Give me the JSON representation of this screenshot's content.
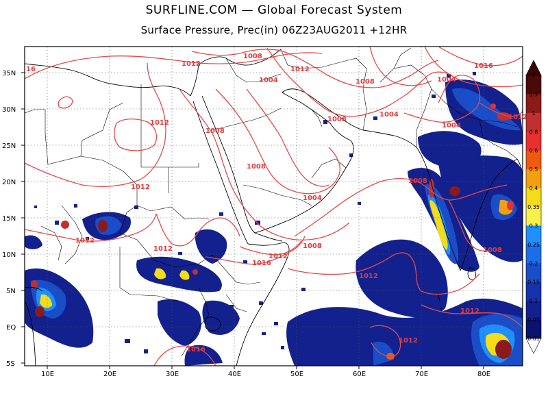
{
  "header": {
    "title": "SURFLINE.COM  —  Global Forecast System",
    "subtitle": "Surface Pressure,  Prec(in) 06Z23AUG2011 +12HR"
  },
  "axes": {
    "lat_labels": [
      "35N",
      "30N",
      "25N",
      "20N",
      "15N",
      "10N",
      "5N",
      "EQ",
      "5S"
    ],
    "lon_labels": [
      "10E",
      "20E",
      "30E",
      "40E",
      "50E",
      "60E",
      "70E",
      "80E"
    ]
  },
  "isobars": [
    {
      "text": "1012"
    },
    {
      "text": "1008"
    },
    {
      "text": "1012"
    },
    {
      "text": "1004"
    },
    {
      "text": "1008"
    },
    {
      "text": "1012"
    },
    {
      "text": "1008"
    },
    {
      "text": "1008"
    },
    {
      "text": "1004"
    },
    {
      "text": "1004"
    },
    {
      "text": "1004"
    },
    {
      "text": "1016"
    },
    {
      "text": "1012"
    },
    {
      "text": "1012"
    },
    {
      "text": "1008"
    },
    {
      "text": "1004"
    },
    {
      "text": "1008"
    },
    {
      "text": "1008"
    },
    {
      "text": "1012"
    },
    {
      "text": "1012"
    },
    {
      "text": "1012"
    },
    {
      "text": "1016"
    },
    {
      "text": "1008"
    },
    {
      "text": "1012"
    },
    {
      "text": "1012"
    },
    {
      "text": "1012"
    },
    {
      "text": "1016"
    },
    {
      "text": "16"
    }
  ],
  "colorbar": {
    "labels": [
      "2",
      "1.5",
      "1",
      "0.8",
      "0.6",
      "0.5",
      "0.4",
      "0.35",
      "0.3",
      "0.25",
      "0.2",
      "0.15",
      "0.1",
      "0.05",
      "0.01"
    ],
    "colors": [
      "#4a0a0a",
      "#8b1a1a",
      "#c03030",
      "#e83030",
      "#f05a10",
      "#f3a010",
      "#f5dc1a",
      "#f7f04a",
      "#1e90ff",
      "#1c6ee6",
      "#1a4ec8",
      "#1633aa",
      "#13218e",
      "#0c1270"
    ]
  }
}
